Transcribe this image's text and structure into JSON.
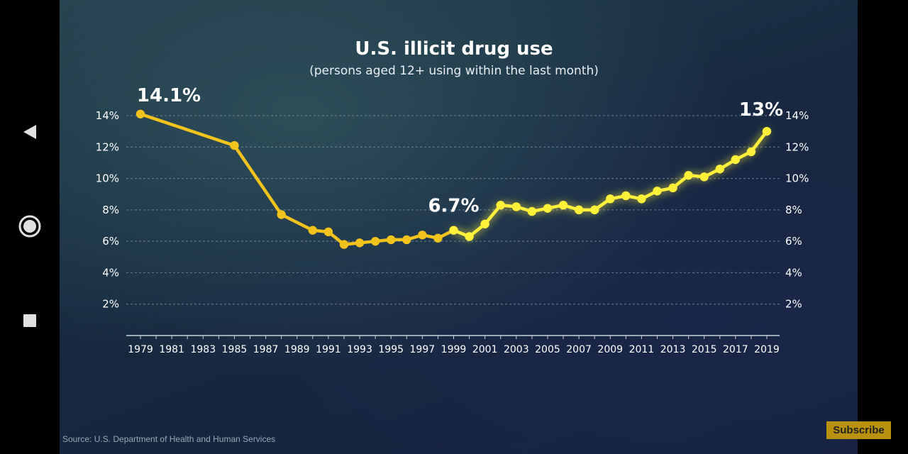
{
  "source_text": "Source: U.S. Department of Health and Human Services",
  "subscribe_label": "Subscribe",
  "nav": {
    "back_icon": "back-triangle-icon",
    "home_icon": "home-circle-icon",
    "recent_icon": "recent-square-icon"
  },
  "colors": {
    "line": "#f2c31c",
    "line_bright": "#fff13a",
    "text": "#ffffff",
    "grid": "#8ea0b0"
  },
  "chart_data": {
    "type": "line",
    "title": "U.S. illicit drug use",
    "subtitle": "(persons aged 12+ using within the last month)",
    "x_tick_labels": [
      "1979",
      "1981",
      "1983",
      "1985",
      "1987",
      "1989",
      "1991",
      "1993",
      "1995",
      "1997",
      "1999",
      "2001",
      "2003",
      "2005",
      "2007",
      "2009",
      "2011",
      "2013",
      "2015",
      "2017",
      "2019"
    ],
    "y_tick_labels": [
      "14%",
      "12%",
      "10%",
      "8%",
      "6%",
      "4%",
      "2%"
    ],
    "xlim": [
      1979,
      2019
    ],
    "ylim": [
      0,
      14
    ],
    "grid": true,
    "series": [
      {
        "x": [
          1979,
          1985,
          1988,
          1990,
          1991,
          1992,
          1993,
          1994,
          1995,
          1996,
          1997,
          1998,
          1999,
          2000,
          2001,
          2002,
          2003,
          2004,
          2005,
          2006,
          2007,
          2008,
          2009,
          2010,
          2011,
          2012,
          2013,
          2014,
          2015,
          2016,
          2017,
          2018,
          2019
        ],
        "values": [
          14.1,
          12.1,
          7.7,
          6.7,
          6.6,
          5.8,
          5.9,
          6.0,
          6.1,
          6.1,
          6.4,
          6.2,
          6.7,
          6.3,
          7.1,
          8.3,
          8.2,
          7.9,
          8.1,
          8.3,
          8.0,
          8.0,
          8.7,
          8.9,
          8.7,
          9.2,
          9.4,
          10.2,
          10.1,
          10.6,
          11.2,
          11.7,
          13.0
        ]
      }
    ],
    "annotations": [
      {
        "text": "14.1%",
        "x": 1979,
        "y": 14.1
      },
      {
        "text": "6.7%",
        "x": 1999,
        "y": 6.7
      },
      {
        "text": "13%",
        "x": 2019,
        "y": 13.0
      }
    ]
  }
}
